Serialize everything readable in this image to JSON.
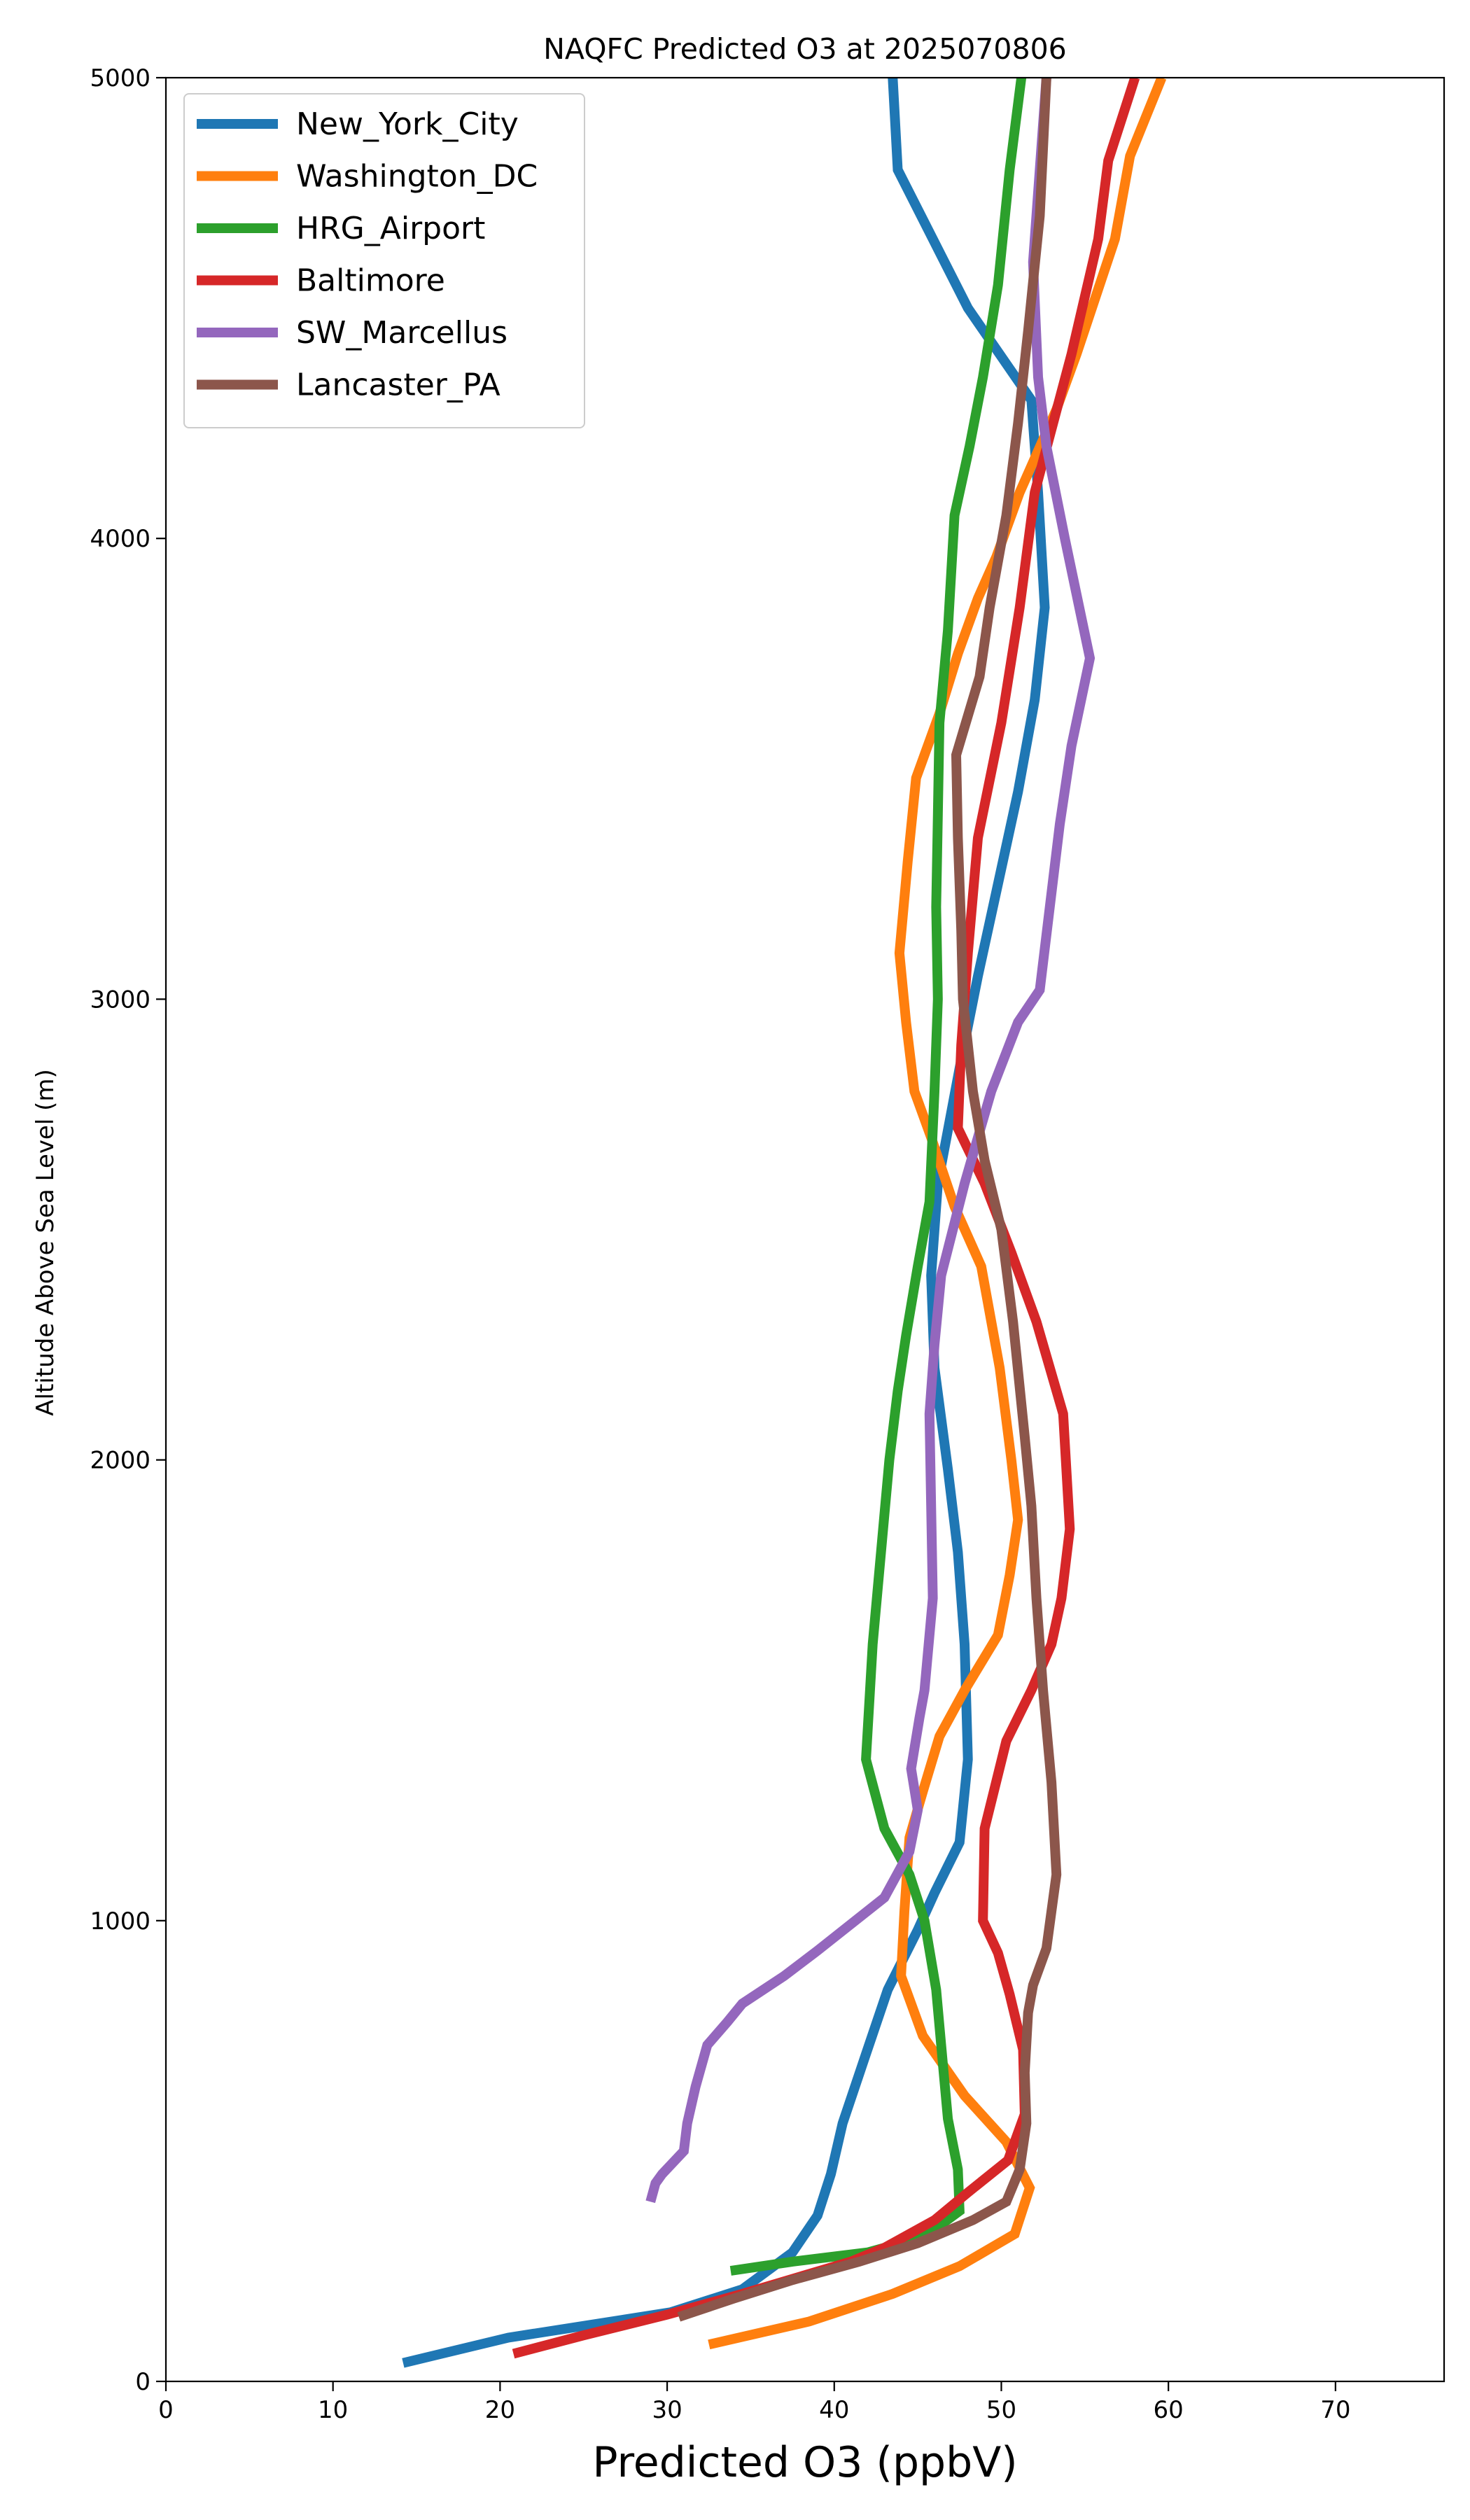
{
  "chart_data": {
    "type": "line",
    "title": "NAQFC Predicted O3 at 2025070806",
    "xlabel": "Predicted O3 (ppbV)",
    "ylabel": "Altitude Above Sea Level (m)",
    "xlim": [
      0,
      76.5
    ],
    "ylim": [
      0,
      5000
    ],
    "xticks": [
      0,
      10,
      20,
      30,
      40,
      50,
      60,
      70
    ],
    "yticks": [
      0,
      1000,
      2000,
      3000,
      4000,
      5000
    ],
    "grid": false,
    "legend_position": "upper-left",
    "series": [
      {
        "name": "New_York_City",
        "color": "#1f77b4",
        "points": [
          [
            14.2,
            40
          ],
          [
            20.5,
            95
          ],
          [
            30.2,
            150
          ],
          [
            34.5,
            200
          ],
          [
            37.5,
            280
          ],
          [
            39.0,
            360
          ],
          [
            39.8,
            450
          ],
          [
            40.5,
            560
          ],
          [
            41.8,
            700
          ],
          [
            43.2,
            850
          ],
          [
            45.0,
            980
          ],
          [
            46.0,
            1060
          ],
          [
            47.5,
            1170
          ],
          [
            48.0,
            1350
          ],
          [
            47.8,
            1600
          ],
          [
            47.4,
            1800
          ],
          [
            46.8,
            1980
          ],
          [
            46.0,
            2200
          ],
          [
            45.8,
            2400
          ],
          [
            46.2,
            2600
          ],
          [
            47.5,
            2850
          ],
          [
            48.6,
            3050
          ],
          [
            49.8,
            3250
          ],
          [
            51.0,
            3450
          ],
          [
            52.0,
            3650
          ],
          [
            52.6,
            3850
          ],
          [
            52.2,
            4100
          ],
          [
            51.8,
            4300
          ],
          [
            48.0,
            4500
          ],
          [
            43.8,
            4800
          ],
          [
            43.5,
            5000
          ]
        ]
      },
      {
        "name": "Washington_DC",
        "color": "#ff7f0e",
        "points": [
          [
            32.5,
            80
          ],
          [
            38.5,
            130
          ],
          [
            43.5,
            190
          ],
          [
            47.5,
            250
          ],
          [
            50.8,
            320
          ],
          [
            51.7,
            420
          ],
          [
            50.3,
            520
          ],
          [
            47.8,
            620
          ],
          [
            45.3,
            750
          ],
          [
            44.0,
            880
          ],
          [
            44.2,
            1020
          ],
          [
            44.5,
            1180
          ],
          [
            45.3,
            1280
          ],
          [
            46.3,
            1400
          ],
          [
            47.8,
            1500
          ],
          [
            49.8,
            1620
          ],
          [
            50.5,
            1750
          ],
          [
            51.0,
            1870
          ],
          [
            50.6,
            2000
          ],
          [
            49.9,
            2200
          ],
          [
            48.8,
            2420
          ],
          [
            47.2,
            2550
          ],
          [
            45.8,
            2700
          ],
          [
            44.8,
            2800
          ],
          [
            44.3,
            2950
          ],
          [
            43.9,
            3100
          ],
          [
            44.4,
            3300
          ],
          [
            44.9,
            3480
          ],
          [
            46.3,
            3620
          ],
          [
            47.4,
            3750
          ],
          [
            48.6,
            3870
          ],
          [
            49.7,
            3960
          ],
          [
            51.1,
            4100
          ],
          [
            53.3,
            4280
          ],
          [
            54.5,
            4400
          ],
          [
            56.8,
            4650
          ],
          [
            57.7,
            4830
          ],
          [
            59.6,
            5000
          ]
        ]
      },
      {
        "name": "HRG_Airport",
        "color": "#2ca02c",
        "points": [
          [
            33.8,
            240
          ],
          [
            37.5,
            260
          ],
          [
            42.0,
            280
          ],
          [
            44.0,
            300
          ],
          [
            46.0,
            330
          ],
          [
            47.5,
            370
          ],
          [
            47.4,
            460
          ],
          [
            46.8,
            570
          ],
          [
            46.5,
            690
          ],
          [
            46.1,
            850
          ],
          [
            45.4,
            1000
          ],
          [
            44.5,
            1100
          ],
          [
            43.0,
            1200
          ],
          [
            41.9,
            1350
          ],
          [
            42.3,
            1600
          ],
          [
            42.8,
            1800
          ],
          [
            43.3,
            2000
          ],
          [
            43.8,
            2150
          ],
          [
            44.3,
            2270
          ],
          [
            45.0,
            2420
          ],
          [
            45.7,
            2560
          ],
          [
            46.0,
            2800
          ],
          [
            46.2,
            3000
          ],
          [
            46.1,
            3200
          ],
          [
            46.2,
            3400
          ],
          [
            46.3,
            3600
          ],
          [
            46.8,
            3800
          ],
          [
            47.2,
            4050
          ],
          [
            48.1,
            4200
          ],
          [
            48.9,
            4350
          ],
          [
            49.8,
            4550
          ],
          [
            50.5,
            4800
          ],
          [
            51.2,
            5000
          ]
        ]
      },
      {
        "name": "Baltimore",
        "color": "#d62728",
        "points": [
          [
            20.8,
            60
          ],
          [
            25.0,
            100
          ],
          [
            30.0,
            145
          ],
          [
            34.5,
            190
          ],
          [
            38.2,
            230
          ],
          [
            41.0,
            260
          ],
          [
            43.0,
            290
          ],
          [
            46.0,
            350
          ],
          [
            48.0,
            410
          ],
          [
            50.4,
            480
          ],
          [
            51.4,
            580
          ],
          [
            51.3,
            720
          ],
          [
            50.5,
            840
          ],
          [
            49.8,
            930
          ],
          [
            48.9,
            1000
          ],
          [
            49.0,
            1200
          ],
          [
            50.3,
            1390
          ],
          [
            51.8,
            1500
          ],
          [
            53.0,
            1600
          ],
          [
            53.6,
            1700
          ],
          [
            54.1,
            1850
          ],
          [
            53.7,
            2100
          ],
          [
            52.1,
            2300
          ],
          [
            50.6,
            2450
          ],
          [
            49.0,
            2600
          ],
          [
            47.4,
            2720
          ],
          [
            47.6,
            2900
          ],
          [
            48.0,
            3100
          ],
          [
            48.6,
            3350
          ],
          [
            50.0,
            3600
          ],
          [
            51.1,
            3850
          ],
          [
            52.0,
            4100
          ],
          [
            54.2,
            4400
          ],
          [
            55.8,
            4650
          ],
          [
            56.4,
            4820
          ],
          [
            58.0,
            5000
          ]
        ]
      },
      {
        "name": "SW_Marcellus",
        "color": "#9467bd",
        "points": [
          [
            29.0,
            390
          ],
          [
            29.3,
            430
          ],
          [
            29.7,
            450
          ],
          [
            31.0,
            500
          ],
          [
            31.2,
            560
          ],
          [
            31.7,
            640
          ],
          [
            32.4,
            730
          ],
          [
            33.6,
            780
          ],
          [
            34.5,
            820
          ],
          [
            37.0,
            880
          ],
          [
            39.0,
            935
          ],
          [
            43.0,
            1050
          ],
          [
            44.5,
            1150
          ],
          [
            45.0,
            1240
          ],
          [
            44.6,
            1330
          ],
          [
            45.1,
            1440
          ],
          [
            45.4,
            1500
          ],
          [
            45.9,
            1700
          ],
          [
            45.8,
            1900
          ],
          [
            45.7,
            2100
          ],
          [
            46.0,
            2250
          ],
          [
            46.4,
            2400
          ],
          [
            47.8,
            2600
          ],
          [
            49.4,
            2800
          ],
          [
            51.0,
            2950
          ],
          [
            52.3,
            3020
          ],
          [
            52.9,
            3200
          ],
          [
            53.5,
            3380
          ],
          [
            54.2,
            3550
          ],
          [
            55.3,
            3740
          ],
          [
            53.8,
            4000
          ],
          [
            52.7,
            4200
          ],
          [
            52.2,
            4350
          ],
          [
            51.9,
            4600
          ],
          [
            52.7,
            5000
          ]
        ]
      },
      {
        "name": "Lancaster_PA",
        "color": "#8c564b",
        "points": [
          [
            30.7,
            140
          ],
          [
            34.0,
            180
          ],
          [
            37.5,
            220
          ],
          [
            41.5,
            260
          ],
          [
            45.0,
            300
          ],
          [
            48.3,
            350
          ],
          [
            50.3,
            390
          ],
          [
            51.1,
            460
          ],
          [
            51.5,
            560
          ],
          [
            51.4,
            670
          ],
          [
            51.6,
            800
          ],
          [
            51.9,
            860
          ],
          [
            52.7,
            940
          ],
          [
            53.3,
            1100
          ],
          [
            53.0,
            1300
          ],
          [
            52.5,
            1500
          ],
          [
            52.1,
            1700
          ],
          [
            51.8,
            1900
          ],
          [
            51.4,
            2050
          ],
          [
            50.7,
            2300
          ],
          [
            50.0,
            2500
          ],
          [
            49.0,
            2650
          ],
          [
            48.3,
            2800
          ],
          [
            47.7,
            3000
          ],
          [
            47.6,
            3150
          ],
          [
            47.4,
            3350
          ],
          [
            47.3,
            3530
          ],
          [
            48.7,
            3700
          ],
          [
            49.3,
            3850
          ],
          [
            50.3,
            4050
          ],
          [
            51.0,
            4250
          ],
          [
            51.6,
            4450
          ],
          [
            52.3,
            4700
          ],
          [
            52.7,
            5000
          ]
        ]
      }
    ]
  }
}
